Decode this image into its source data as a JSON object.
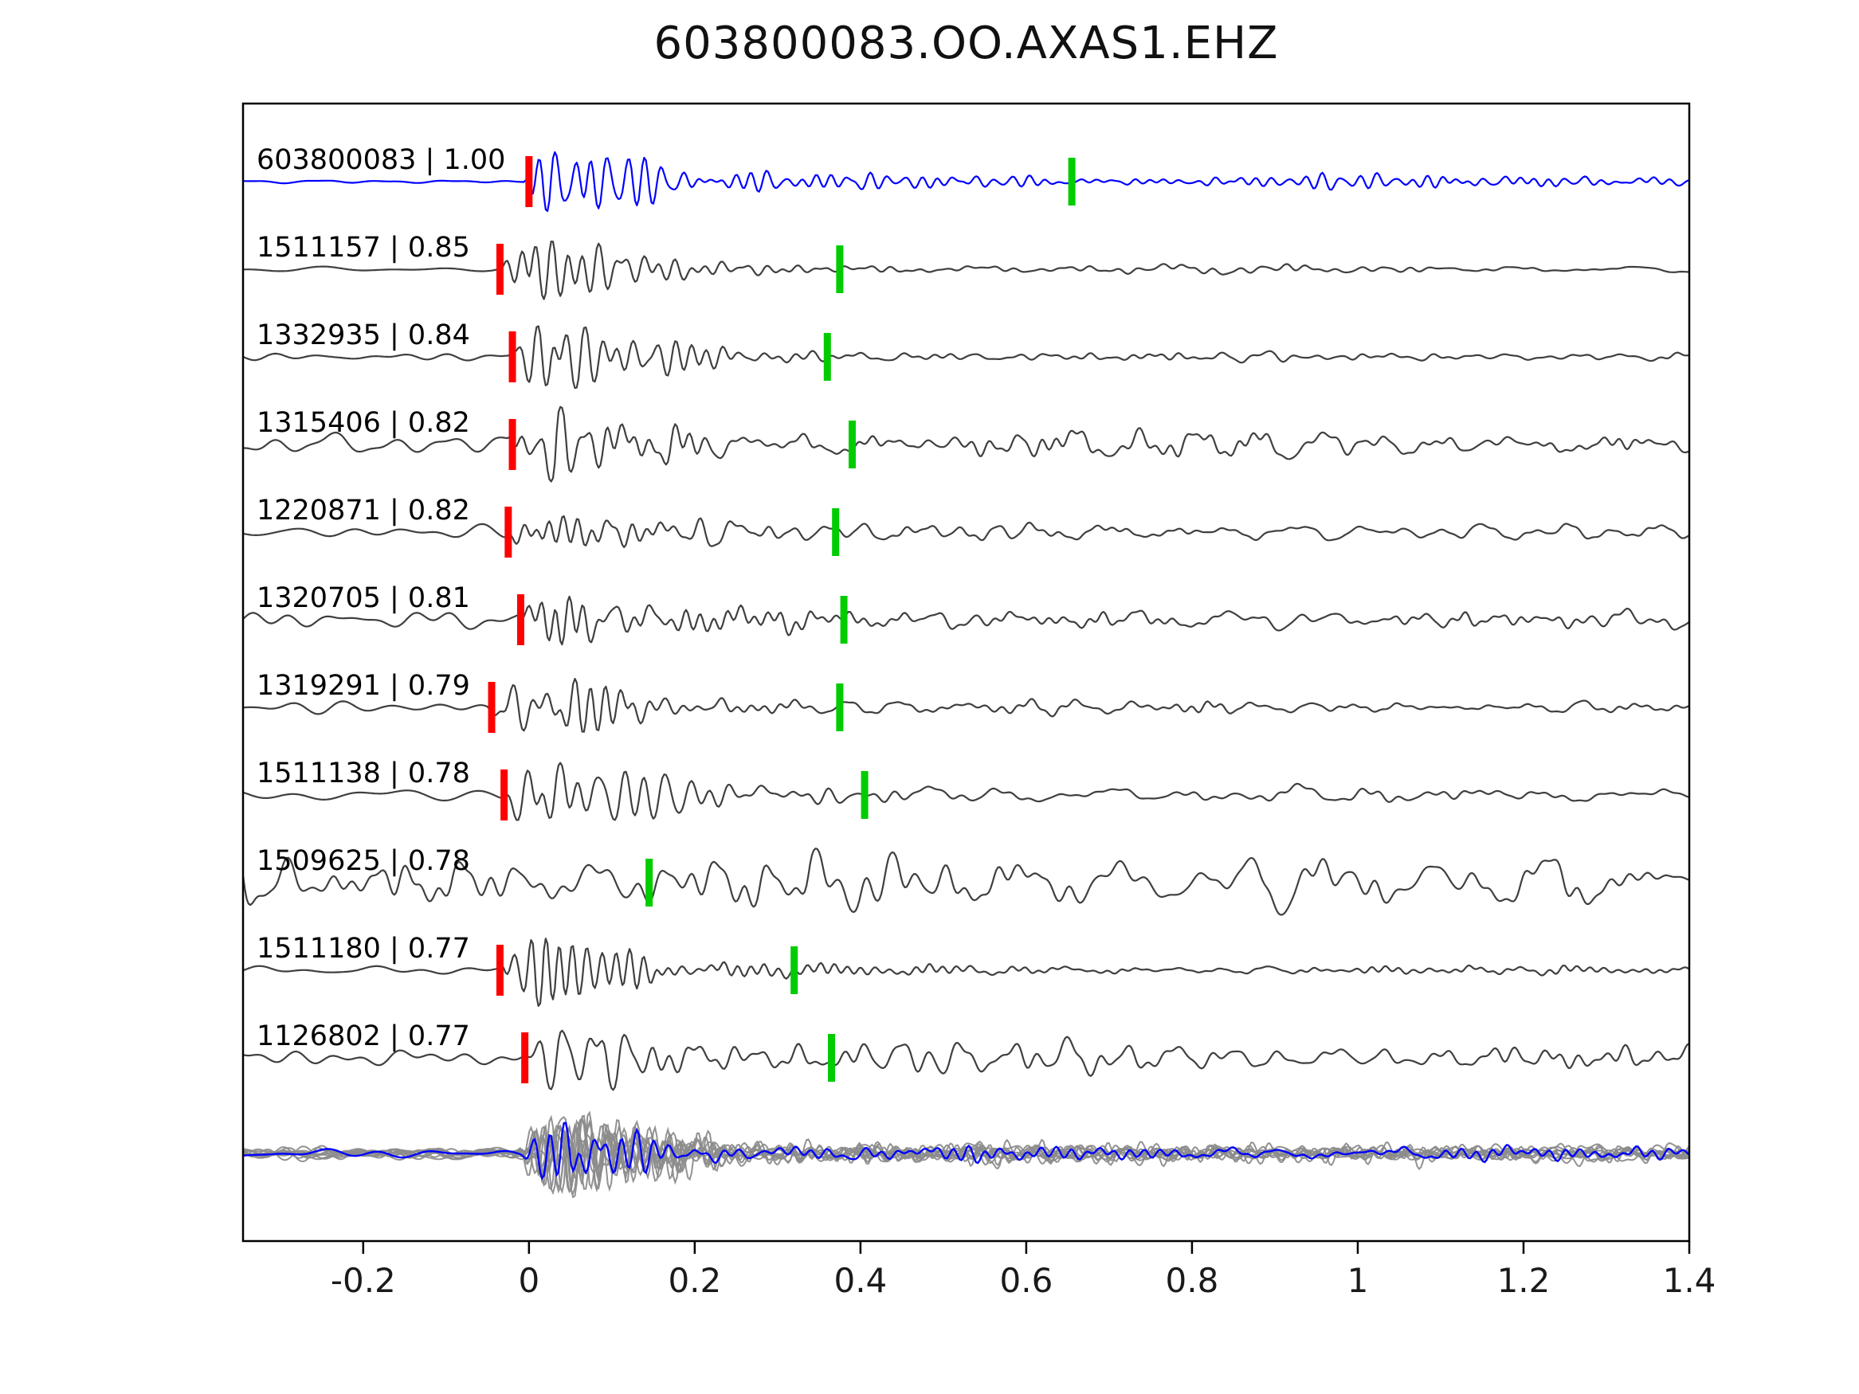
{
  "chart_data": {
    "type": "line",
    "title": "603800083.OO.AXAS1.EHZ",
    "xlabel": "",
    "ylabel": "",
    "xlim": [
      -0.345,
      1.4
    ],
    "x_ticks": [
      -0.2,
      0,
      0.2,
      0.4,
      0.6,
      0.8,
      1,
      1.2,
      1.4
    ],
    "x_tick_labels": [
      "-0.2",
      "0",
      "0.2",
      "0.4",
      "0.6",
      "0.8",
      "1",
      "1.2",
      "1.4"
    ],
    "grid": false,
    "legend": null,
    "colors": {
      "template": "#0000ff",
      "match": "#3f3f3f",
      "overlay_gray": "#8c8c8c",
      "pick_red": "#ff0000",
      "pick_green": "#00cc00",
      "axis": "#000000"
    },
    "traces": [
      {
        "event_id": "603800083",
        "label": "603800083 | 1.00",
        "correlation": 1.0,
        "color": "blue",
        "red_pick": 0.0,
        "green_pick": 0.655
      },
      {
        "event_id": "1511157",
        "label": "1511157 | 0.85",
        "correlation": 0.85,
        "color": "dark",
        "red_pick": -0.035,
        "green_pick": 0.375
      },
      {
        "event_id": "1332935",
        "label": "1332935 | 0.84",
        "correlation": 0.84,
        "color": "dark",
        "red_pick": -0.02,
        "green_pick": 0.36
      },
      {
        "event_id": "1315406",
        "label": "1315406 | 0.82",
        "correlation": 0.82,
        "color": "dark",
        "red_pick": -0.02,
        "green_pick": 0.39
      },
      {
        "event_id": "1220871",
        "label": "1220871 | 0.82",
        "correlation": 0.82,
        "color": "dark",
        "red_pick": -0.025,
        "green_pick": 0.37
      },
      {
        "event_id": "1320705",
        "label": "1320705 | 0.81",
        "correlation": 0.81,
        "color": "dark",
        "red_pick": -0.01,
        "green_pick": 0.38
      },
      {
        "event_id": "1319291",
        "label": "1319291 | 0.79",
        "correlation": 0.79,
        "color": "dark",
        "red_pick": -0.045,
        "green_pick": 0.375
      },
      {
        "event_id": "1511138",
        "label": "1511138 | 0.78",
        "correlation": 0.78,
        "color": "dark",
        "red_pick": -0.03,
        "green_pick": 0.405
      },
      {
        "event_id": "1509625",
        "label": "1509625 | 0.78",
        "correlation": 0.78,
        "color": "dark",
        "red_pick": null,
        "green_pick": 0.145
      },
      {
        "event_id": "1511180",
        "label": "1511180 | 0.77",
        "correlation": 0.77,
        "color": "dark",
        "red_pick": -0.035,
        "green_pick": 0.32
      },
      {
        "event_id": "1126802",
        "label": "1126802 | 0.77",
        "correlation": 0.77,
        "color": "dark",
        "red_pick": -0.005,
        "green_pick": 0.365
      }
    ],
    "overlay_row": {
      "description": "all matched waveforms overlaid in gray with blue template on top",
      "gray_trace_count": 10,
      "has_template_overlay": true
    }
  }
}
